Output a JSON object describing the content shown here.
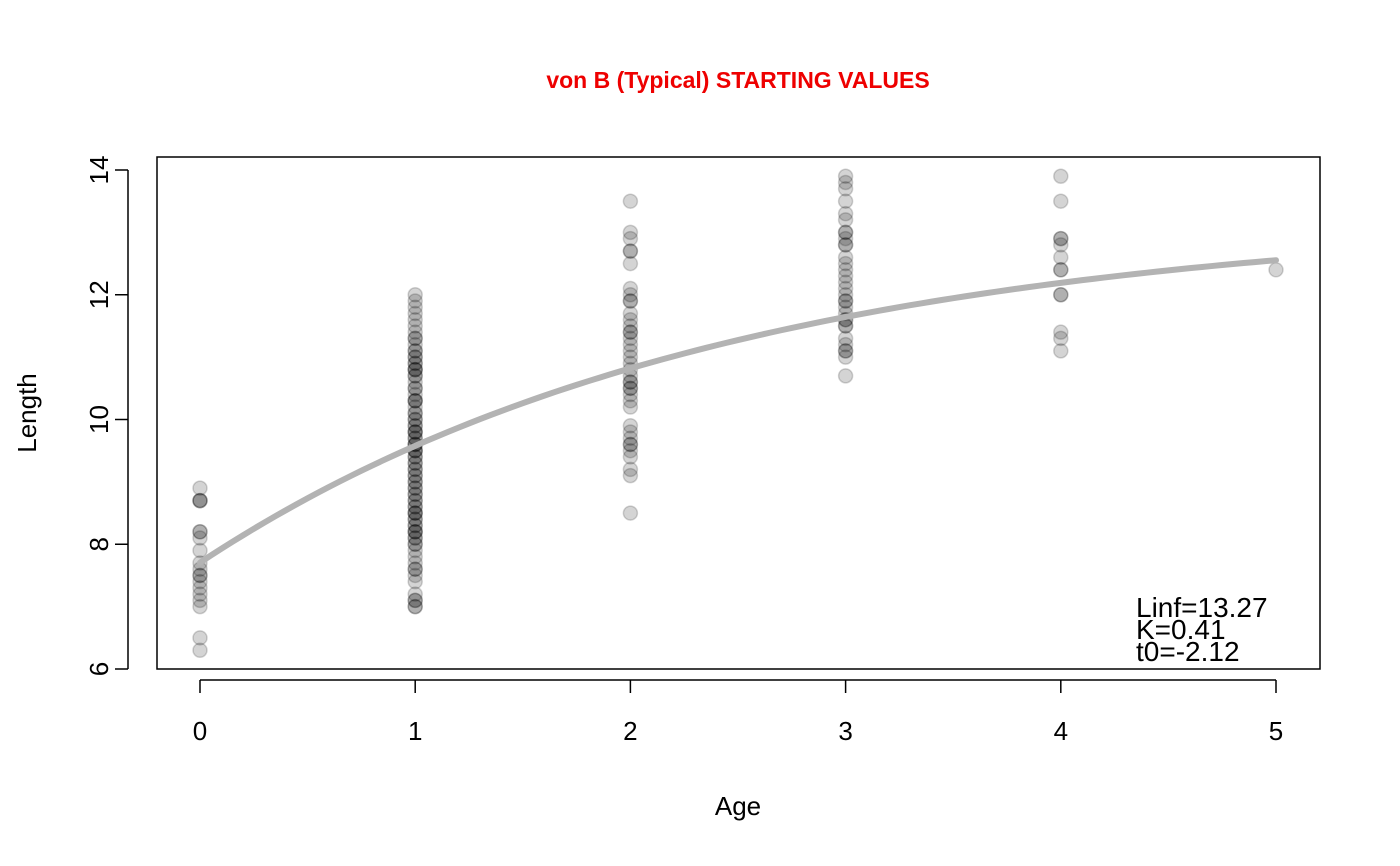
{
  "chart_data": {
    "type": "scatter",
    "title": "von B (Typical) STARTING VALUES",
    "title_color": "#ee0000",
    "xlabel": "Age",
    "ylabel": "Length",
    "xlim": [
      -0.2,
      5.2
    ],
    "ylim": [
      6,
      14.2
    ],
    "x_ticks": [
      0,
      1,
      2,
      3,
      4,
      5
    ],
    "y_ticks": [
      6,
      8,
      10,
      12,
      14
    ],
    "grid": false,
    "point_color": "#000000",
    "point_alpha": 0.17,
    "curve_color": "#b3b3b3",
    "points": [
      {
        "x": 0,
        "values": [
          8.9,
          8.7,
          8.7,
          8.7,
          8.2,
          8.2,
          8.1,
          7.9,
          7.7,
          7.6,
          7.5,
          7.5,
          7.4,
          7.3,
          7.2,
          7.1,
          7.0,
          6.5,
          6.3
        ]
      },
      {
        "x": 1,
        "values": [
          12.0,
          11.9,
          11.8,
          11.7,
          11.6,
          11.5,
          11.4,
          11.3,
          11.3,
          11.2,
          11.1,
          11.1,
          11.0,
          11.0,
          10.9,
          10.9,
          10.8,
          10.8,
          10.8,
          10.7,
          10.7,
          10.6,
          10.5,
          10.5,
          10.4,
          10.3,
          10.3,
          10.3,
          10.2,
          10.1,
          10.1,
          10.0,
          10.0,
          9.9,
          9.9,
          9.8,
          9.8,
          9.8,
          9.7,
          9.7,
          9.6,
          9.6,
          9.6,
          9.5,
          9.5,
          9.5,
          9.4,
          9.4,
          9.3,
          9.3,
          9.2,
          9.2,
          9.1,
          9.1,
          9.0,
          9.0,
          8.9,
          8.9,
          8.8,
          8.8,
          8.7,
          8.7,
          8.6,
          8.6,
          8.5,
          8.5,
          8.5,
          8.4,
          8.4,
          8.3,
          8.3,
          8.2,
          8.2,
          8.2,
          8.1,
          8.1,
          8.0,
          8.0,
          7.9,
          7.8,
          7.7,
          7.6,
          7.6,
          7.5,
          7.4,
          7.2,
          7.1,
          7.1,
          7.0,
          7.0
        ]
      },
      {
        "x": 2,
        "values": [
          13.5,
          13.0,
          12.9,
          12.7,
          12.7,
          12.5,
          12.1,
          12.0,
          11.9,
          11.9,
          11.7,
          11.6,
          11.5,
          11.4,
          11.4,
          11.3,
          11.2,
          11.1,
          11.0,
          10.9,
          10.8,
          10.7,
          10.6,
          10.6,
          10.5,
          10.5,
          10.4,
          10.3,
          10.2,
          9.9,
          9.8,
          9.7,
          9.6,
          9.6,
          9.5,
          9.4,
          9.2,
          9.1,
          8.5
        ]
      },
      {
        "x": 3,
        "values": [
          13.9,
          13.8,
          13.7,
          13.5,
          13.3,
          13.2,
          13.0,
          13.0,
          12.9,
          12.8,
          12.8,
          12.6,
          12.5,
          12.4,
          12.3,
          12.2,
          12.1,
          12.0,
          11.9,
          11.9,
          11.8,
          11.7,
          11.6,
          11.6,
          11.5,
          11.5,
          11.3,
          11.2,
          11.1,
          11.1,
          11.0,
          10.7
        ]
      },
      {
        "x": 4,
        "values": [
          13.9,
          13.5,
          12.9,
          12.9,
          12.8,
          12.6,
          12.4,
          12.4,
          12.0,
          12.0,
          11.4,
          11.3,
          11.1
        ]
      },
      {
        "x": 5,
        "values": [
          12.4
        ]
      }
    ],
    "curve": {
      "Linf": 13.27,
      "K": 0.41,
      "t0": -2.12,
      "x_range": [
        0,
        5
      ]
    },
    "annotations": [
      "Linf=13.27",
      "K=0.41",
      "t0=-2.12"
    ]
  }
}
